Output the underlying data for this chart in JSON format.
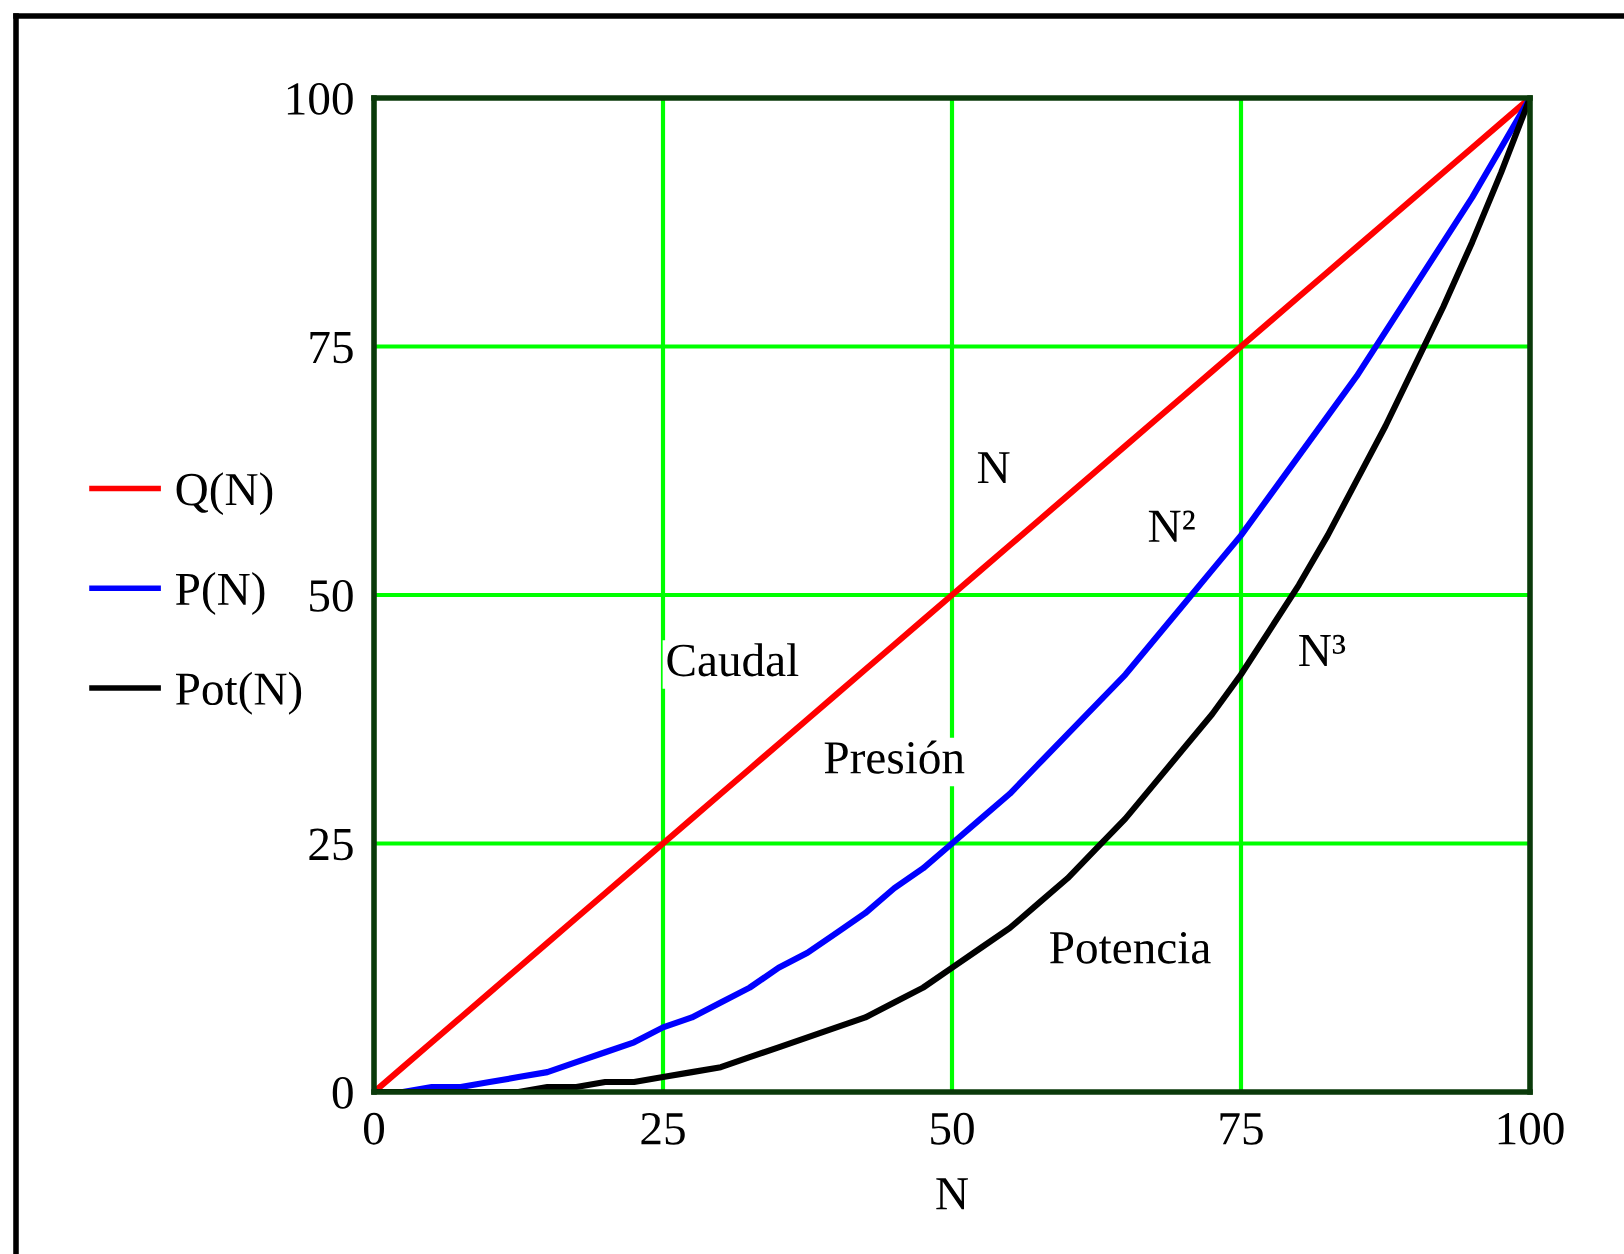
{
  "chart_data": {
    "type": "line",
    "xlabel": "N",
    "x": [
      0,
      2.5,
      5,
      7.5,
      10,
      12.5,
      15,
      17.5,
      20,
      22.5,
      25,
      27.5,
      30,
      32.5,
      35,
      37.5,
      40,
      42.5,
      45,
      47.5,
      50,
      52.5,
      55,
      57.5,
      60,
      62.5,
      65,
      67.5,
      70,
      72.5,
      75,
      77.5,
      80,
      82.5,
      85,
      87.5,
      90,
      92.5,
      95,
      97.5,
      100
    ],
    "series": [
      {
        "name": "Q(N)",
        "color": "#ff0000",
        "values": [
          0,
          2.5,
          5,
          7.5,
          10,
          12.5,
          15,
          17.5,
          20,
          22.5,
          25,
          27.5,
          30,
          32.5,
          35,
          37.5,
          40,
          42.5,
          45,
          47.5,
          50,
          52.5,
          55,
          57.5,
          60,
          62.5,
          65,
          67.5,
          70,
          72.5,
          75,
          77.5,
          80,
          82.5,
          85,
          87.5,
          90,
          92.5,
          95,
          97.5,
          100
        ]
      },
      {
        "name": "P(N)",
        "color": "#0000ff",
        "values": [
          0,
          0,
          0.5,
          0.5,
          1,
          1.5,
          2,
          3,
          4,
          5,
          6.5,
          7.5,
          9,
          10.5,
          12.5,
          14,
          16,
          18,
          20.5,
          22.5,
          25,
          27.5,
          30,
          33,
          36,
          39,
          42,
          45.5,
          49,
          52.5,
          56,
          60,
          64,
          68,
          72,
          76.5,
          81,
          85.5,
          90,
          95,
          100
        ]
      },
      {
        "name": "Pot(N)",
        "color": "#000000",
        "values": [
          0,
          0,
          0,
          0,
          0,
          0,
          0.5,
          0.5,
          1,
          1,
          1.5,
          2,
          2.5,
          3.5,
          4.5,
          5.5,
          6.5,
          7.5,
          9,
          10.5,
          12.5,
          14.5,
          16.5,
          19,
          21.5,
          24.5,
          27.5,
          31,
          34.5,
          38,
          42,
          46.5,
          51,
          56,
          61.5,
          67,
          73,
          79,
          85.5,
          92.5,
          100
        ]
      }
    ],
    "xlim": [
      0,
      100
    ],
    "ylim": [
      0,
      100
    ],
    "xticks": [
      0,
      25,
      50,
      75,
      100
    ],
    "yticks": [
      0,
      25,
      50,
      75,
      100
    ],
    "grid": true,
    "legend": "left",
    "marker": "none",
    "line_style": "solid",
    "annotations": [
      "N",
      "N²",
      "N³",
      "Caudal",
      "Presión",
      "Potencia"
    ]
  }
}
